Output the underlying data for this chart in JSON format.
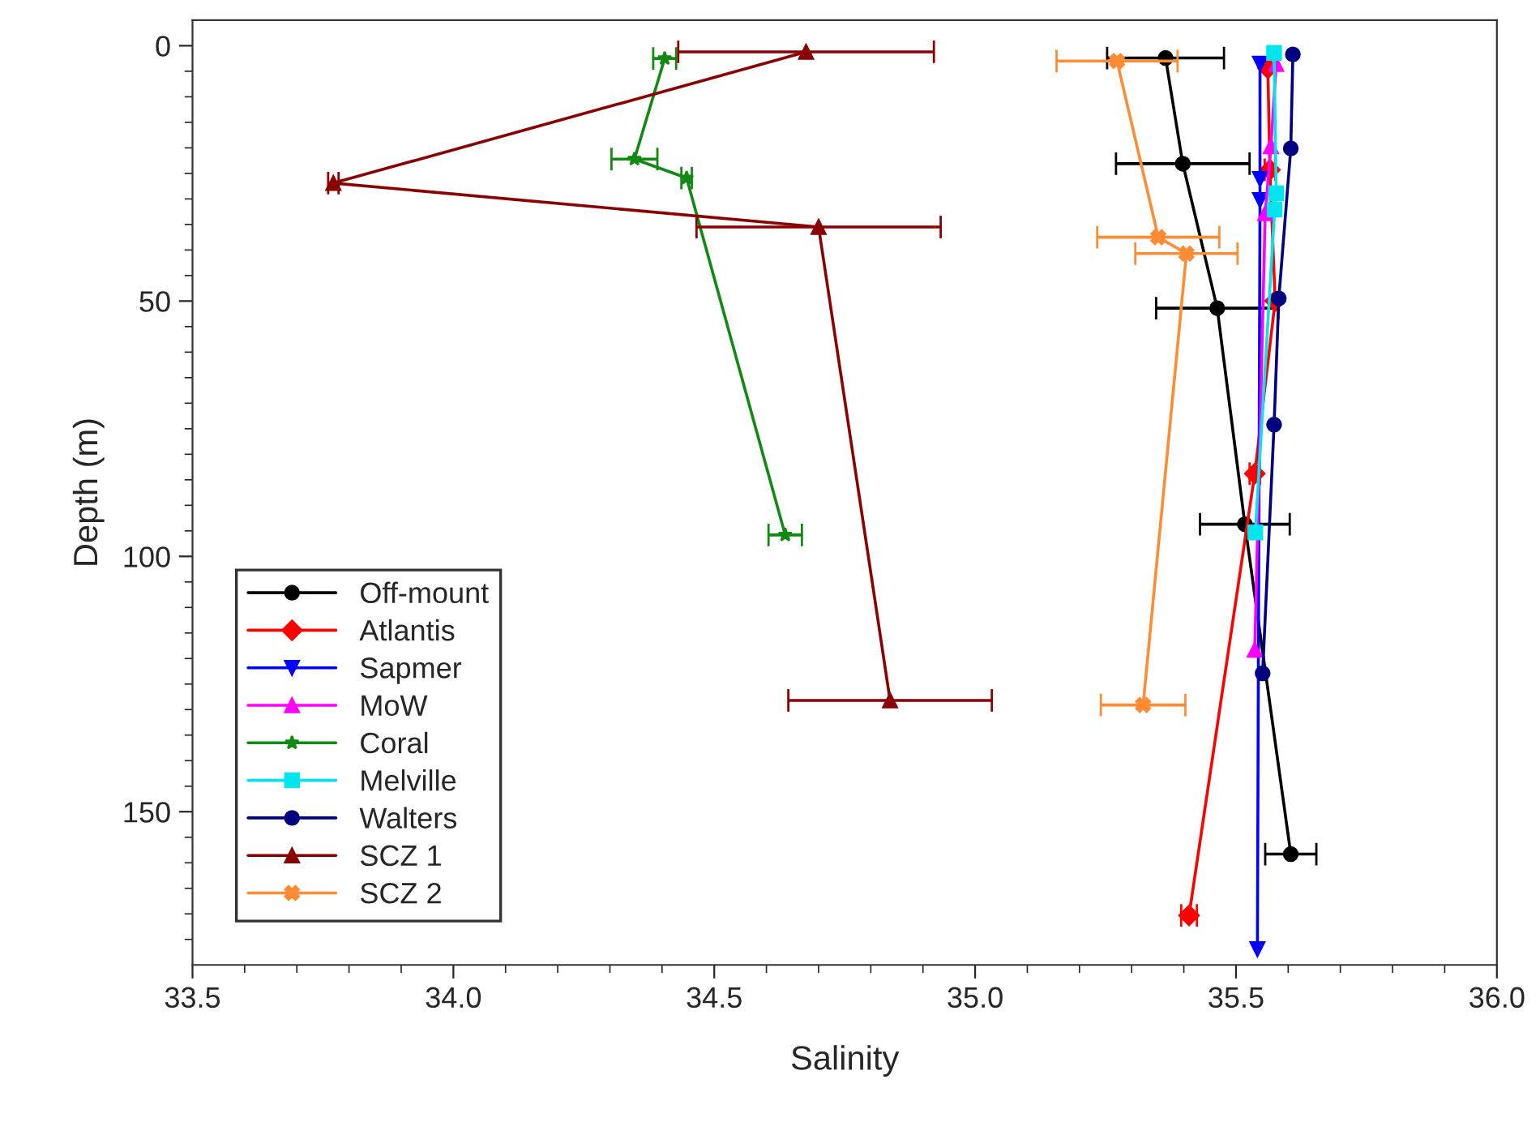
{
  "chart_data": {
    "type": "line",
    "xlabel": "Salinity",
    "ylabel": "Depth (m)",
    "xlim": [
      33.5,
      36.0
    ],
    "ylim": [
      180,
      -5
    ],
    "xticks": [
      {
        "value": 33.5,
        "label": "33.5"
      },
      {
        "value": 33.6,
        "label": null
      },
      {
        "value": 33.7,
        "label": null
      },
      {
        "value": 33.8,
        "label": null
      },
      {
        "value": 33.9,
        "label": null
      },
      {
        "value": 34.0,
        "label": "34.0"
      },
      {
        "value": 34.1,
        "label": null
      },
      {
        "value": 34.2,
        "label": null
      },
      {
        "value": 34.3,
        "label": null
      },
      {
        "value": 34.4,
        "label": null
      },
      {
        "value": 34.5,
        "label": "34.5"
      },
      {
        "value": 34.6,
        "label": null
      },
      {
        "value": 34.7,
        "label": null
      },
      {
        "value": 34.8,
        "label": null
      },
      {
        "value": 34.9,
        "label": null
      },
      {
        "value": 35.0,
        "label": "35.0"
      },
      {
        "value": 35.1,
        "label": null
      },
      {
        "value": 35.2,
        "label": null
      },
      {
        "value": 35.3,
        "label": null
      },
      {
        "value": 35.4,
        "label": null
      },
      {
        "value": 35.5,
        "label": "35.5"
      },
      {
        "value": 35.6,
        "label": null
      },
      {
        "value": 35.7,
        "label": null
      },
      {
        "value": 35.8,
        "label": null
      },
      {
        "value": 35.9,
        "label": null
      },
      {
        "value": 36.0,
        "label": "36.0"
      }
    ],
    "yticks": [
      0,
      {
        "value": 5,
        "label": null
      },
      {
        "value": 10,
        "label": null
      },
      {
        "value": 15,
        "label": null
      },
      {
        "value": 20,
        "label": null
      },
      {
        "value": 25,
        "label": null
      },
      {
        "value": 30,
        "label": null
      },
      {
        "value": 35,
        "label": null
      },
      {
        "value": 40,
        "label": null
      },
      {
        "value": 45,
        "label": null
      },
      50,
      {
        "value": 55,
        "label": null
      },
      {
        "value": 60,
        "label": null
      },
      {
        "value": 65,
        "label": null
      },
      {
        "value": 70,
        "label": null
      },
      {
        "value": 75,
        "label": null
      },
      {
        "value": 80,
        "label": null
      },
      {
        "value": 85,
        "label": null
      },
      {
        "value": 90,
        "label": null
      },
      {
        "value": 95,
        "label": null
      },
      100,
      {
        "value": 105,
        "label": null
      },
      {
        "value": 110,
        "label": null
      },
      {
        "value": 115,
        "label": null
      },
      {
        "value": 120,
        "label": null
      },
      {
        "value": 125,
        "label": null
      },
      {
        "value": 130,
        "label": null
      },
      {
        "value": 135,
        "label": null
      },
      {
        "value": 140,
        "label": null
      },
      {
        "value": 145,
        "label": null
      },
      150,
      {
        "value": 155,
        "label": null
      },
      {
        "value": 160,
        "label": null
      },
      {
        "value": 165,
        "label": null
      },
      {
        "value": 170,
        "label": null
      },
      {
        "value": 175,
        "label": null
      }
    ],
    "grid": false,
    "legend": "bottom left",
    "line_style": "solid",
    "series": [
      {
        "name": "Off-mount",
        "color": "#000000",
        "marker": "circle",
        "x": [
          35.365,
          35.398,
          35.464,
          35.517,
          35.605
        ],
        "values": [
          2.4,
          23.1,
          51.4,
          93.7,
          158.3
        ],
        "xerrors": [
          0.112,
          0.128,
          0.117,
          0.086,
          0.049
        ]
      },
      {
        "name": "Atlantis",
        "color": "#ff0000",
        "marker": "diamond",
        "x": [
          35.561,
          35.565,
          35.575,
          35.536,
          35.41
        ],
        "values": [
          4.4,
          24.3,
          50,
          83.8,
          170.3
        ],
        "xerrors": [
          null,
          0.01,
          null,
          0.01,
          0.015
        ]
      },
      {
        "name": "Sapmer",
        "color": "#0000ff",
        "marker": "triangle_down",
        "x": [
          35.546,
          35.546,
          35.546,
          35.541
        ],
        "values": [
          3.5,
          26.1,
          30.2,
          176.9
        ]
      },
      {
        "name": "MoW",
        "color": "#ff00ff",
        "marker": "triangle",
        "x": [
          35.577,
          35.567,
          35.556,
          35.536
        ],
        "values": [
          3.6,
          19.7,
          32.8,
          118.3
        ]
      },
      {
        "name": "Coral",
        "color": "#108a10",
        "marker": "star",
        "x": [
          34.405,
          34.347,
          34.447,
          34.636
        ],
        "values": [
          2.5,
          22.2,
          25.9,
          95.8
        ],
        "xerrors": [
          0.022,
          0.044,
          0.01,
          0.032
        ]
      },
      {
        "name": "Melville",
        "color": "#00e5ee",
        "marker": "square",
        "x": [
          35.573,
          35.577,
          35.574,
          35.537
        ],
        "values": [
          1.4,
          28.9,
          32.1,
          95.3
        ]
      },
      {
        "name": "Walters",
        "color": "#000080",
        "marker": "circle",
        "x": [
          35.609,
          35.605,
          35.582,
          35.573,
          35.551
        ],
        "values": [
          1.7,
          20.1,
          49.5,
          74.2,
          122.9
        ]
      },
      {
        "name": "SCZ 1",
        "color": "#8b0000",
        "marker": "triangle",
        "x": [
          34.676,
          33.77,
          34.7,
          34.837
        ],
        "values": [
          1.2,
          26.9,
          35.5,
          128.2
        ],
        "xerrors": [
          0.245,
          0.01,
          0.234,
          0.195
        ]
      },
      {
        "name": "SCZ 2",
        "color": "#ff8c33",
        "marker": "cross",
        "x": [
          35.272,
          35.351,
          35.405,
          35.322
        ],
        "values": [
          3.0,
          37.5,
          40.7,
          129.1
        ],
        "xerrors": [
          0.116,
          0.117,
          0.098,
          0.081
        ]
      }
    ]
  }
}
